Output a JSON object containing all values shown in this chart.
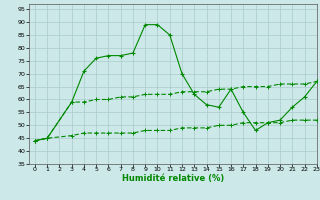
{
  "xlabel": "Humidité relative (%)",
  "background_color": "#cce8e8",
  "grid_color": "#aacccc",
  "line_color": "#008800",
  "xlim": [
    -0.5,
    23
  ],
  "ylim": [
    35,
    97
  ],
  "yticks": [
    35,
    40,
    45,
    50,
    55,
    60,
    65,
    70,
    75,
    80,
    85,
    90,
    95
  ],
  "xticks": [
    0,
    1,
    2,
    3,
    4,
    5,
    6,
    7,
    8,
    9,
    10,
    11,
    12,
    13,
    14,
    15,
    16,
    17,
    18,
    19,
    20,
    21,
    22,
    23
  ],
  "line1_x": [
    0,
    1,
    3,
    4,
    5,
    6,
    7,
    8,
    9,
    10,
    11,
    12,
    13,
    14,
    15,
    16,
    17,
    18,
    19,
    20,
    21,
    22,
    23
  ],
  "line1_y": [
    44,
    45,
    59,
    71,
    76,
    77,
    77,
    78,
    89,
    89,
    85,
    70,
    62,
    58,
    57,
    64,
    55,
    48,
    51,
    52,
    57,
    61,
    67
  ],
  "line2_x": [
    0,
    1,
    3,
    4,
    5,
    6,
    7,
    8,
    9,
    10,
    11,
    12,
    13,
    14,
    15,
    16,
    17,
    18,
    19,
    20,
    21,
    22,
    23
  ],
  "line2_y": [
    44,
    45,
    59,
    59,
    60,
    60,
    61,
    61,
    62,
    62,
    62,
    63,
    63,
    63,
    64,
    64,
    65,
    65,
    65,
    66,
    66,
    66,
    67
  ],
  "line3_x": [
    0,
    1,
    3,
    4,
    5,
    6,
    7,
    8,
    9,
    10,
    11,
    12,
    13,
    14,
    15,
    16,
    17,
    18,
    19,
    20,
    21,
    22,
    23
  ],
  "line3_y": [
    44,
    45,
    46,
    47,
    47,
    47,
    47,
    47,
    48,
    48,
    48,
    49,
    49,
    49,
    50,
    50,
    51,
    51,
    51,
    51,
    52,
    52,
    52
  ]
}
